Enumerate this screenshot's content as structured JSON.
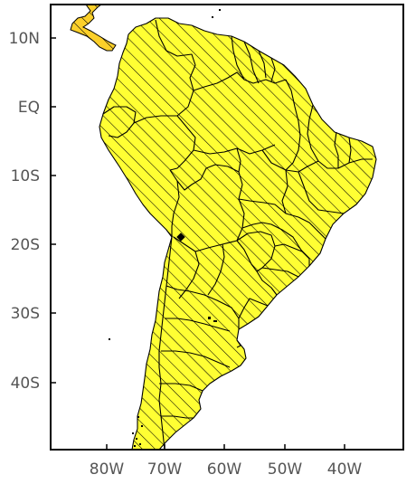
{
  "map": {
    "lat_labels": [
      "10N",
      "EQ",
      "10S",
      "20S",
      "30S",
      "40S"
    ],
    "lon_labels": [
      "80W",
      "70W",
      "60W",
      "50W",
      "40W"
    ],
    "colors": {
      "ocean": "#ffffff",
      "frame": "#000000",
      "hatch": "#000000",
      "base_yellow": "#ffff33",
      "light_yellow": "#fff9b0",
      "orange_light": "#fcd02a",
      "orange": "#f5a623",
      "orange_dark": "#f07818",
      "red": "#e8341c",
      "red_dark": "#d4140c"
    }
  }
}
